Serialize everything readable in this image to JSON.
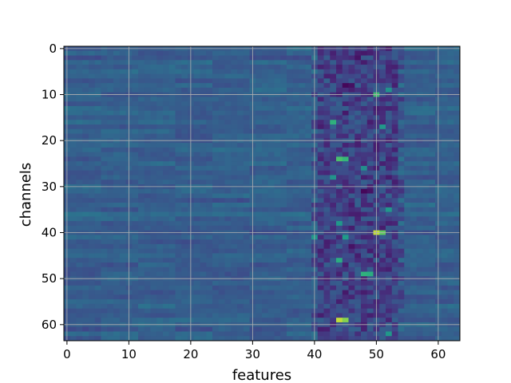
{
  "chart_data": {
    "type": "heatmap",
    "title": "",
    "xlabel": "features",
    "ylabel": "channels",
    "n_features": 64,
    "n_channels": 64,
    "xlim": [
      -0.5,
      63.5
    ],
    "ylim": [
      63.5,
      -0.5
    ],
    "x_ticks": [
      0,
      10,
      20,
      30,
      40,
      50,
      60
    ],
    "y_ticks": [
      0,
      10,
      20,
      30,
      40,
      50,
      60
    ],
    "colormap": "viridis",
    "value_range": [
      0,
      1
    ],
    "background_level": 0.34,
    "grid": true,
    "grid_color": "#b0b0b0",
    "band": {
      "features": [
        40,
        54
      ],
      "mean_level": 0.22,
      "note_color_low": "#440154"
    },
    "hotspots": [
      {
        "channel": 59,
        "feature": 44,
        "value": 0.95
      },
      {
        "channel": 59,
        "feature": 45,
        "value": 0.9
      },
      {
        "channel": 40,
        "feature": 50,
        "value": 0.95
      },
      {
        "channel": 40,
        "feature": 51,
        "value": 0.85
      },
      {
        "channel": 24,
        "feature": 44,
        "value": 0.8
      },
      {
        "channel": 24,
        "feature": 45,
        "value": 0.75
      },
      {
        "channel": 16,
        "feature": 43,
        "value": 0.72
      },
      {
        "channel": 10,
        "feature": 50,
        "value": 0.78
      },
      {
        "channel": 49,
        "feature": 48,
        "value": 0.72
      },
      {
        "channel": 49,
        "feature": 49,
        "value": 0.7
      },
      {
        "channel": 46,
        "feature": 44,
        "value": 0.7
      },
      {
        "channel": 41,
        "feature": 45,
        "value": 0.62
      },
      {
        "channel": 41,
        "feature": 40,
        "value": 0.6
      },
      {
        "channel": 35,
        "feature": 52,
        "value": 0.6
      },
      {
        "channel": 28,
        "feature": 43,
        "value": 0.58
      },
      {
        "channel": 9,
        "feature": 52,
        "value": 0.58
      },
      {
        "channel": 17,
        "feature": 51,
        "value": 0.6
      },
      {
        "channel": 62,
        "feature": 52,
        "value": 0.6
      },
      {
        "channel": 38,
        "feature": 44,
        "value": 0.6
      },
      {
        "channel": 26,
        "feature": 48,
        "value": 0.55
      }
    ],
    "coldspots": [
      {
        "channel": 8,
        "feature": 45,
        "value": 0.02
      },
      {
        "channel": 8,
        "feature": 46,
        "value": 0.05
      },
      {
        "channel": 31,
        "feature": 48,
        "value": 0.02
      },
      {
        "channel": 31,
        "feature": 49,
        "value": 0.06
      },
      {
        "channel": 2,
        "feature": 47,
        "value": 0.06
      },
      {
        "channel": 1,
        "feature": 48,
        "value": 0.08
      },
      {
        "channel": 14,
        "feature": 45,
        "value": 0.08
      },
      {
        "channel": 43,
        "feature": 46,
        "value": 0.06
      },
      {
        "channel": 53,
        "feature": 45,
        "value": 0.08
      },
      {
        "channel": 55,
        "feature": 44,
        "value": 0.1
      },
      {
        "channel": 4,
        "feature": 44,
        "value": 0.1
      },
      {
        "channel": 20,
        "feature": 47,
        "value": 0.1
      },
      {
        "channel": 36,
        "feature": 46,
        "value": 0.1
      },
      {
        "channel": 60,
        "feature": 48,
        "value": 0.1
      }
    ]
  }
}
